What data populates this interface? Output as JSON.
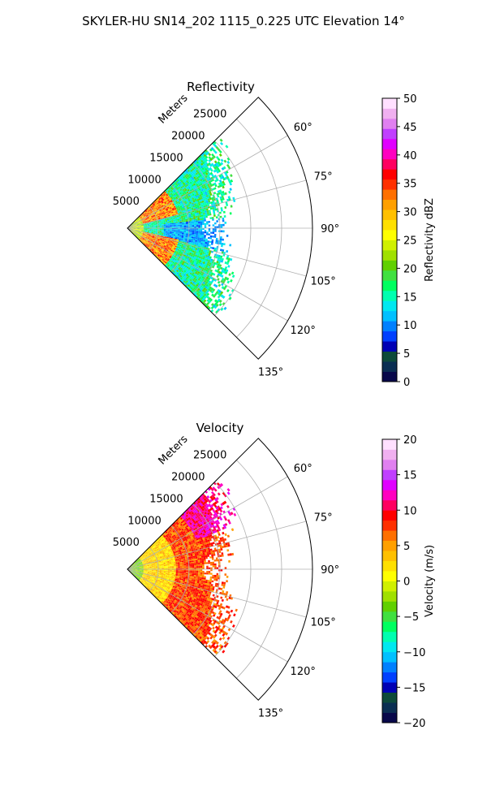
{
  "figure": {
    "suptitle": "SKYLER-HU  SN14_202  1115_0.225 UTC Elevation 14°"
  },
  "colors": {
    "grid": "#b0b0b0",
    "frame": "#000000",
    "background": "#ffffff"
  },
  "chart_data": [
    {
      "type": "heatmap",
      "projection": "polar-sector",
      "title": "Reflectivity",
      "radial_label": "Meters",
      "theta_range_deg": [
        45,
        135
      ],
      "theta_ticks": [
        "60°",
        "75°",
        "90°",
        "105°",
        "120°",
        "135°"
      ],
      "theta_tick_values": [
        60,
        75,
        90,
        105,
        120,
        135
      ],
      "r_max": 30000,
      "r_ticks": [
        "5000",
        "10000",
        "15000",
        "20000",
        "25000"
      ],
      "r_tick_values": [
        5000,
        10000,
        15000,
        20000,
        25000
      ],
      "grid": true,
      "colorbar": {
        "label": "Reflectivity dBZ",
        "range": [
          0,
          50
        ],
        "ticks": [
          "0",
          "5",
          "10",
          "15",
          "20",
          "25",
          "30",
          "35",
          "40",
          "45",
          "50"
        ],
        "tick_values": [
          0,
          5,
          10,
          15,
          20,
          25,
          30,
          35,
          40,
          45,
          50
        ],
        "colormap": [
          "#08084a",
          "#0a2e52",
          "#0d4a3a",
          "#0000b4",
          "#0040ff",
          "#0080ff",
          "#00c0ff",
          "#00e8f0",
          "#00ffb0",
          "#00ff60",
          "#40e040",
          "#60d000",
          "#a0e000",
          "#d0f000",
          "#ffff00",
          "#ffe000",
          "#ffc000",
          "#ffa000",
          "#ff7000",
          "#ff3000",
          "#ff0000",
          "#ff0060",
          "#ff00c0",
          "#e000ff",
          "#c040ff",
          "#e080f0",
          "#f0b0f0",
          "#ffe0ff"
        ]
      },
      "data_extent_m": 21000,
      "typical_values": "mostly 10-25 dBZ with 30-37 dBZ cores within 2-8 km"
    },
    {
      "type": "heatmap",
      "projection": "polar-sector",
      "title": "Velocity",
      "radial_label": "Meters",
      "theta_range_deg": [
        45,
        135
      ],
      "theta_ticks": [
        "60°",
        "75°",
        "90°",
        "105°",
        "120°",
        "135°"
      ],
      "theta_tick_values": [
        60,
        75,
        90,
        105,
        120,
        135
      ],
      "r_max": 30000,
      "r_ticks": [
        "5000",
        "10000",
        "15000",
        "20000",
        "25000"
      ],
      "r_tick_values": [
        5000,
        10000,
        15000,
        20000,
        25000
      ],
      "grid": true,
      "colorbar": {
        "label": "Velocity (m/s)",
        "range": [
          -20,
          20
        ],
        "ticks": [
          "−20",
          "−15",
          "−10",
          "−5",
          "0",
          "5",
          "10",
          "15",
          "20"
        ],
        "tick_values": [
          -20,
          -15,
          -10,
          -5,
          0,
          5,
          10,
          15,
          20
        ],
        "colormap": [
          "#08084a",
          "#0a2e52",
          "#0d4a3a",
          "#0000b4",
          "#0040ff",
          "#0080ff",
          "#00c0ff",
          "#00e8f0",
          "#00ffb0",
          "#00ff60",
          "#40e040",
          "#60d000",
          "#a0e000",
          "#d0f000",
          "#ffff00",
          "#ffe000",
          "#ffc000",
          "#ffa000",
          "#ff7000",
          "#ff3000",
          "#ff0000",
          "#ff0060",
          "#ff00c0",
          "#e000ff",
          "#c040ff",
          "#e080f0",
          "#f0b0f0",
          "#ffe0ff"
        ]
      },
      "data_extent_m": 21000,
      "typical_values": "-5 to 0 m/s near radar, 3-10 m/s at mid range"
    }
  ]
}
